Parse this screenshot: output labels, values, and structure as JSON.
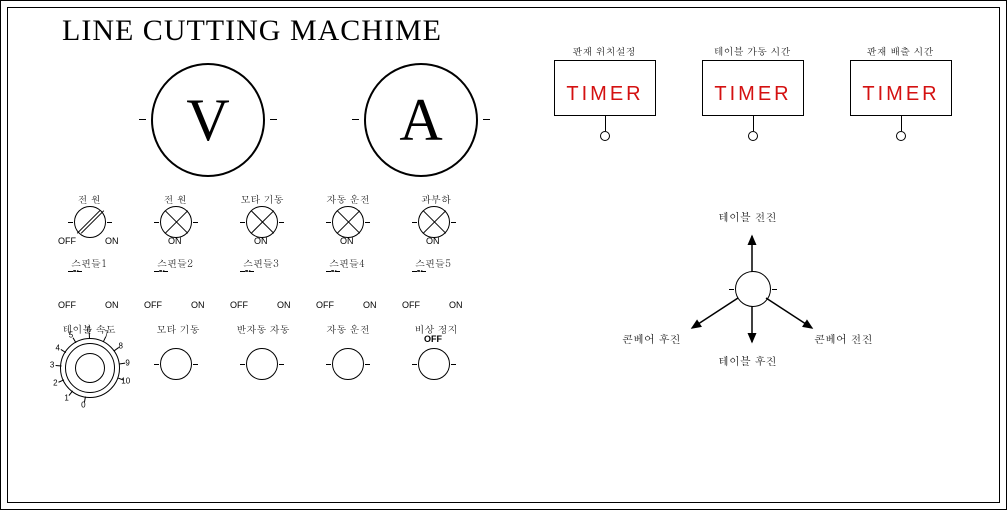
{
  "title": "LINE CUTTING MACHIME",
  "colors": {
    "timer_text": "#d41111",
    "line": "#000000",
    "bg": "#ffffff"
  },
  "gauges": {
    "v": {
      "letter": "V"
    },
    "a": {
      "letter": "A"
    }
  },
  "row2": {
    "power_switch": {
      "label": "전  원",
      "off": "OFF",
      "on": "ON"
    },
    "control_power": {
      "label": "전  원",
      "on": "ON"
    },
    "motor_start": {
      "label": "모타 기동",
      "on": "ON"
    },
    "auto_run": {
      "label": "자동 운전",
      "on": "ON"
    },
    "overload": {
      "label": "과부하",
      "on": "ON"
    }
  },
  "spindles": {
    "items": [
      {
        "label": "스핀들1",
        "off": "OFF",
        "on": "ON"
      },
      {
        "label": "스핀들2",
        "off": "OFF",
        "on": "ON"
      },
      {
        "label": "스핀들3",
        "off": "OFF",
        "on": "ON"
      },
      {
        "label": "스핀들4",
        "off": "OFF",
        "on": "ON"
      },
      {
        "label": "스핀들5",
        "off": "OFF",
        "on": "ON"
      }
    ]
  },
  "speed_dial": {
    "label": "테이블 속도",
    "range_min": 0,
    "range_max": 10,
    "ticks": [
      0,
      1,
      2,
      3,
      4,
      5,
      6,
      7,
      8,
      9,
      10
    ]
  },
  "row4_buttons": {
    "motor_start": {
      "label": "모타 기동"
    },
    "semi_auto": {
      "label": "반자동 자동"
    },
    "auto_run": {
      "label": "자동 운전"
    },
    "emergency_stop": {
      "label": "비상 정지",
      "sub": "OFF"
    }
  },
  "timers": [
    {
      "label": "판재 위치설정",
      "text": "TIMER"
    },
    {
      "label": "테이블 가동 시간",
      "text": "TIMER"
    },
    {
      "label": "판재 배출 시간",
      "text": "TIMER"
    }
  ],
  "joystick": {
    "up": "테이블 전진",
    "down": "테이블 후진",
    "left": "콘베어 후진",
    "right": "콘베어 전진"
  }
}
